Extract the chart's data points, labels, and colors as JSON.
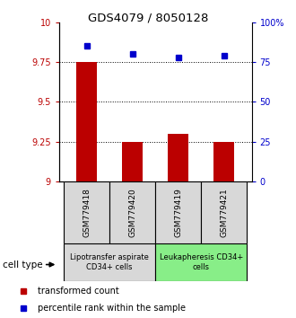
{
  "title": "GDS4079 / 8050128",
  "samples": [
    "GSM779418",
    "GSM779420",
    "GSM779419",
    "GSM779421"
  ],
  "bar_values": [
    9.75,
    9.25,
    9.3,
    9.25
  ],
  "bar_base": 9.0,
  "percentile_values": [
    85,
    80,
    78,
    79
  ],
  "bar_color": "#bb0000",
  "percentile_color": "#0000cc",
  "ylim_left": [
    9.0,
    10.0
  ],
  "ylim_right": [
    0,
    100
  ],
  "yticks_left": [
    9.0,
    9.25,
    9.5,
    9.75,
    10.0
  ],
  "ytick_labels_left": [
    "9",
    "9.25",
    "9.5",
    "9.75",
    "10"
  ],
  "yticks_right": [
    0,
    25,
    50,
    75,
    100
  ],
  "ytick_labels_right": [
    "0",
    "25",
    "50",
    "75",
    "100%"
  ],
  "hlines": [
    9.25,
    9.5,
    9.75
  ],
  "group1_label": "Lipotransfer aspirate\nCD34+ cells",
  "group2_label": "Leukapheresis CD34+\ncells",
  "group1_color": "#d8d8d8",
  "group2_color": "#88ee88",
  "cell_type_label": "cell type",
  "legend_bar_label": "transformed count",
  "legend_pt_label": "percentile rank within the sample",
  "bar_width": 0.45,
  "figsize": [
    3.3,
    3.54
  ],
  "dpi": 100
}
